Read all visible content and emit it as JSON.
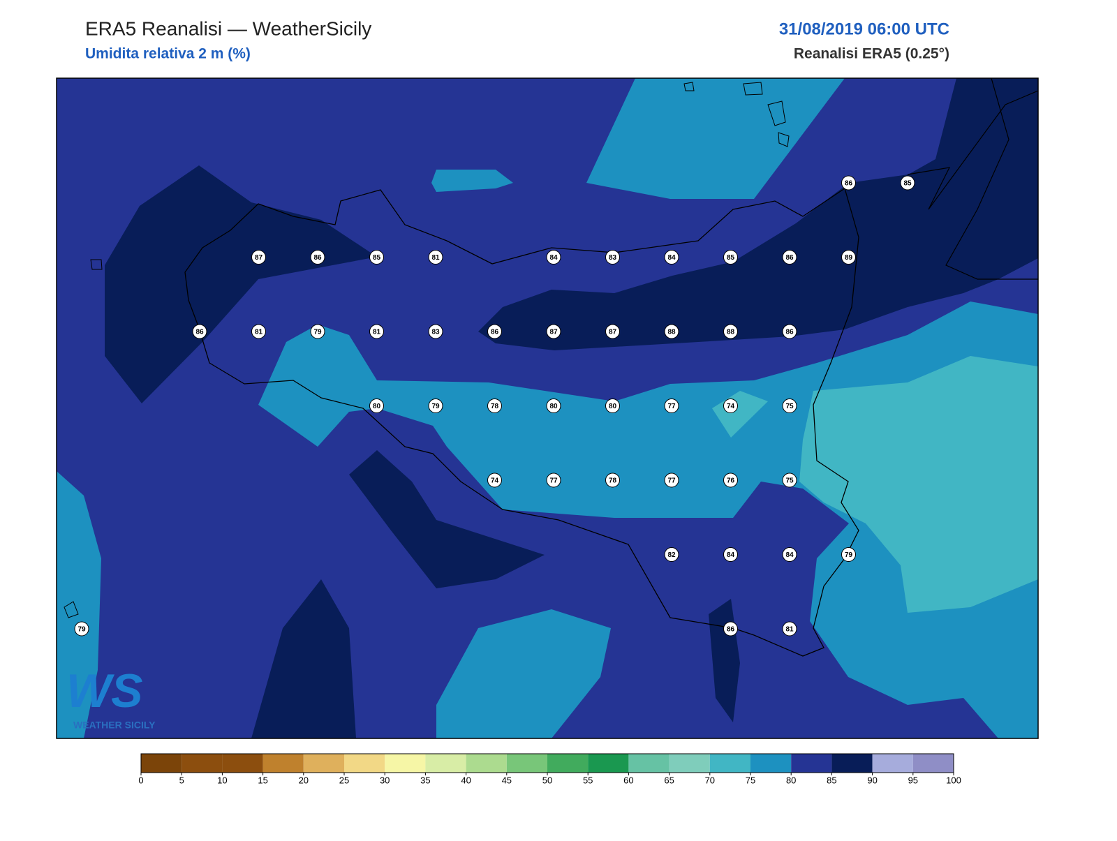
{
  "header": {
    "title": "ERA5 Reanalisi — WeatherSicily",
    "subtitle": "Umidita relativa 2 m (%)",
    "datetime": "31/08/2019 06:00 UTC",
    "source": "Reanalisi ERA5 (0.25°)"
  },
  "logo": {
    "mark": "WS",
    "name": "WEATHER SICILY"
  },
  "station_grid": [
    [
      null,
      null,
      null,
      null,
      null,
      null,
      null,
      null,
      null,
      null,
      null,
      null,
      null,
      86,
      85
    ],
    [
      null,
      null,
      null,
      87,
      86,
      85,
      81,
      null,
      84,
      83,
      84,
      85,
      86,
      89,
      null
    ],
    [
      null,
      null,
      86,
      81,
      79,
      81,
      83,
      86,
      87,
      87,
      88,
      88,
      86,
      null,
      null
    ],
    [
      null,
      null,
      null,
      null,
      null,
      80,
      79,
      78,
      80,
      80,
      77,
      74,
      75,
      null,
      null
    ],
    [
      null,
      null,
      null,
      null,
      null,
      null,
      null,
      74,
      77,
      78,
      77,
      76,
      75,
      null,
      null
    ],
    [
      null,
      null,
      null,
      null,
      null,
      null,
      null,
      null,
      null,
      null,
      82,
      84,
      84,
      79,
      null
    ],
    [
      79,
      null,
      null,
      null,
      null,
      null,
      null,
      null,
      null,
      null,
      null,
      86,
      81,
      null,
      null
    ]
  ],
  "colorbar": {
    "ticks": [
      0,
      5,
      10,
      15,
      20,
      25,
      30,
      35,
      40,
      45,
      50,
      55,
      60,
      65,
      70,
      75,
      80,
      85,
      90,
      95,
      100
    ],
    "colors": [
      "#7b4409",
      "#8c4e0e",
      "#8c4e0e",
      "#bf812d",
      "#dfb05c",
      "#f2d886",
      "#f6f6a6",
      "#d8eda6",
      "#acdb8f",
      "#78c679",
      "#41ab5d",
      "#1a9850",
      "#66c2a4",
      "#7fcdbb",
      "#41b6c4",
      "#1d91c0",
      "#253494",
      "#081d58",
      "#a6acdc",
      "#8f8ec6"
    ]
  }
}
